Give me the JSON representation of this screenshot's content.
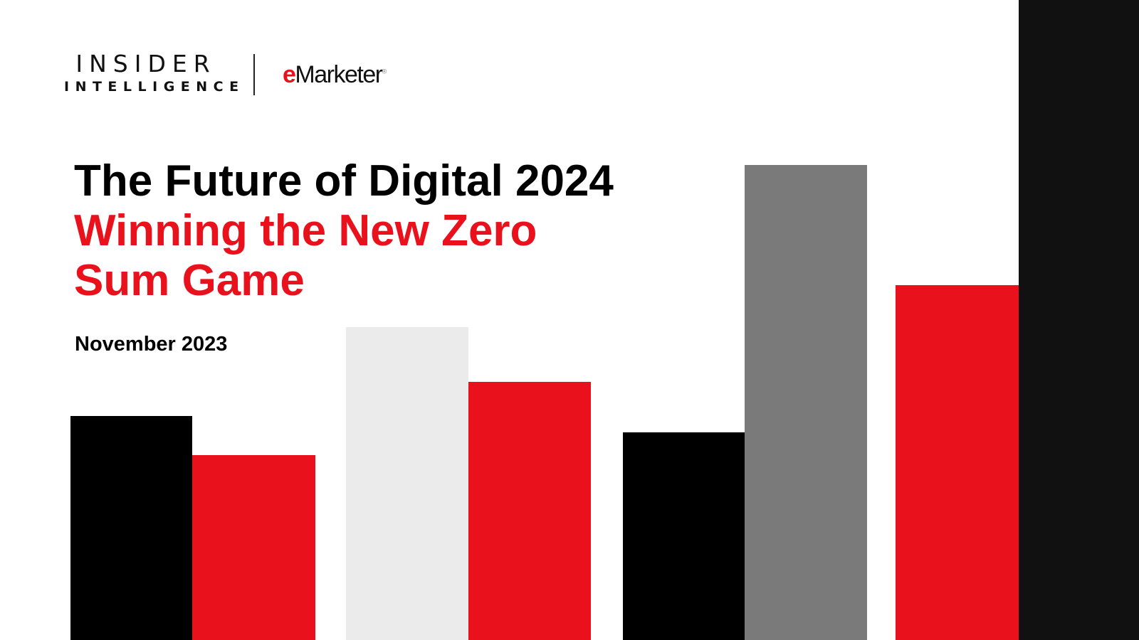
{
  "logo": {
    "insider": "INSIDER",
    "intelligence": "INTELLIGENCE",
    "emarketer_e": "e",
    "emarketer_rest": "Marketer",
    "registered": "®"
  },
  "title": "The Future of Digital 2024",
  "subtitle": "Winning the New Zero Sum Game",
  "date": "November 2023",
  "colors": {
    "red": "#e8111c",
    "black": "#000000",
    "light_gray": "#ebebeb",
    "gray": "#7a7a7a",
    "panel": "#111111"
  }
}
